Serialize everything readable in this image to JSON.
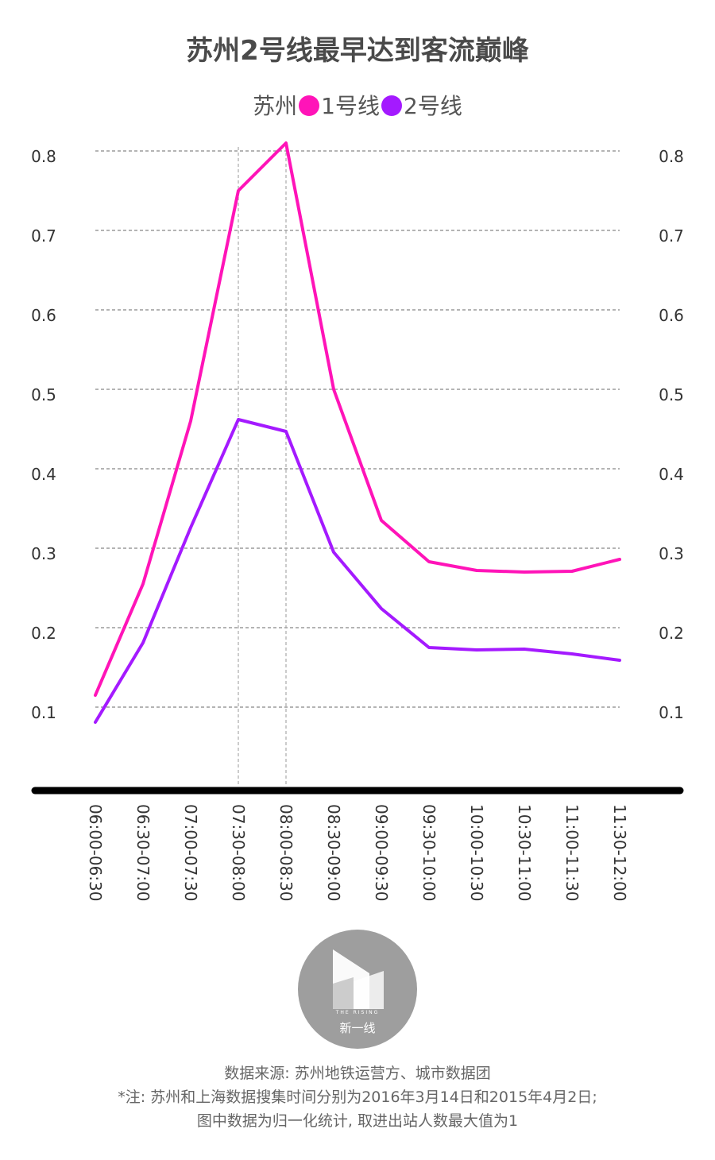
{
  "title": "苏州2号线最早达到客流巅峰",
  "legend": {
    "prefix": "苏州"
  },
  "colors": {
    "line1": "#ff14b8",
    "line2": "#a41aff",
    "grid": "#888888",
    "axis": "#000000"
  },
  "chart_data": {
    "type": "line",
    "title": "苏州2号线最早达到客流巅峰",
    "categories": [
      "06:00-06:30",
      "06:30-07:00",
      "07:00-07:30",
      "07:30-08:00",
      "08:00-08:30",
      "08:30-09:00",
      "09:00-09:30",
      "09:30-10:00",
      "10:00-10:30",
      "10:30-11:00",
      "11:00-11:30",
      "11:30-12:00"
    ],
    "series": [
      {
        "name": "1号线",
        "values": [
          0.115,
          0.255,
          0.46,
          0.75,
          0.81,
          0.5,
          0.335,
          0.283,
          0.272,
          0.27,
          0.271,
          0.286
        ]
      },
      {
        "name": "2号线",
        "values": [
          0.081,
          0.181,
          0.326,
          0.462,
          0.447,
          0.295,
          0.224,
          0.175,
          0.172,
          0.173,
          0.167,
          0.159
        ]
      }
    ],
    "yticks": [
      "0.1",
      "0.2",
      "0.3",
      "0.4",
      "0.5",
      "0.6",
      "0.7",
      "0.8"
    ],
    "ylim": [
      0,
      0.8
    ],
    "highlight_categories": [
      "07:30-08:00",
      "08:00-08:30"
    ],
    "grid": true,
    "legend_position": "top-center"
  },
  "logo": {
    "tiny_text": "THE RISING",
    "sub_text": "新一线"
  },
  "footer": {
    "source": "数据来源: 苏州地铁运营方、城市数据团",
    "note1": "*注: 苏州和上海数据搜集时间分别为2016年3月14日和2015年4月2日;",
    "note2": "图中数据为归一化统计, 取进出站人数最大值为1"
  }
}
